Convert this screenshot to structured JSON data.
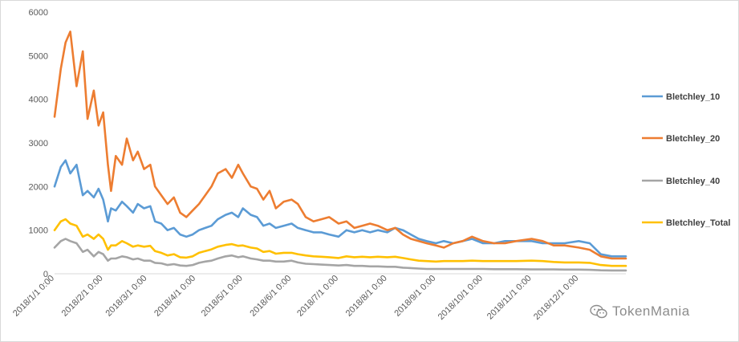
{
  "chart_data": {
    "type": "line",
    "title": "",
    "xlabel": "",
    "ylabel": "",
    "ylim": [
      0,
      6000
    ],
    "y_ticks": [
      0,
      1000,
      2000,
      3000,
      4000,
      5000,
      6000
    ],
    "grid": false,
    "legend_position": "right",
    "x_tick_labels": [
      "2018/1/1 0:00",
      "2018/2/1 0:00",
      "2018/3/1 0:00",
      "2018/4/1 0:00",
      "2018/5/1 0:00",
      "2018/6/1 0:00",
      "2018/7/1 0:00",
      "2018/8/1 0:00",
      "2018/9/1 0:00",
      "2018/10/1 0:00",
      "2018/11/1 0:00",
      "2018/12/1 0:00"
    ],
    "x": [
      "2018-01-01",
      "2018-01-05",
      "2018-01-08",
      "2018-01-11",
      "2018-01-15",
      "2018-01-19",
      "2018-01-22",
      "2018-01-26",
      "2018-01-29",
      "2018-02-01",
      "2018-02-04",
      "2018-02-06",
      "2018-02-09",
      "2018-02-13",
      "2018-02-16",
      "2018-02-20",
      "2018-02-23",
      "2018-02-27",
      "2018-03-03",
      "2018-03-06",
      "2018-03-10",
      "2018-03-14",
      "2018-03-18",
      "2018-03-22",
      "2018-03-26",
      "2018-03-30",
      "2018-04-03",
      "2018-04-07",
      "2018-04-11",
      "2018-04-15",
      "2018-04-20",
      "2018-04-24",
      "2018-04-28",
      "2018-05-01",
      "2018-05-06",
      "2018-05-10",
      "2018-05-14",
      "2018-05-18",
      "2018-05-22",
      "2018-05-27",
      "2018-06-01",
      "2018-06-05",
      "2018-06-10",
      "2018-06-15",
      "2018-06-20",
      "2018-06-25",
      "2018-07-01",
      "2018-07-06",
      "2018-07-11",
      "2018-07-16",
      "2018-07-21",
      "2018-07-26",
      "2018-08-01",
      "2018-08-06",
      "2018-08-11",
      "2018-08-16",
      "2018-08-21",
      "2018-08-26",
      "2018-09-01",
      "2018-09-06",
      "2018-09-12",
      "2018-09-18",
      "2018-09-24",
      "2018-10-01",
      "2018-10-08",
      "2018-10-15",
      "2018-10-22",
      "2018-11-01",
      "2018-11-08",
      "2018-11-15",
      "2018-11-22",
      "2018-12-01",
      "2018-12-08",
      "2018-12-15",
      "2018-12-22",
      "2018-12-31"
    ],
    "series": [
      {
        "name": "Bletchley_10",
        "color": "#5b9bd5",
        "values": [
          2000,
          2450,
          2600,
          2300,
          2500,
          1800,
          1900,
          1750,
          1950,
          1700,
          1200,
          1500,
          1450,
          1650,
          1550,
          1400,
          1600,
          1500,
          1550,
          1200,
          1150,
          1000,
          1050,
          900,
          850,
          900,
          1000,
          1050,
          1100,
          1250,
          1350,
          1400,
          1300,
          1500,
          1350,
          1300,
          1100,
          1150,
          1050,
          1100,
          1150,
          1050,
          1000,
          950,
          950,
          900,
          850,
          1000,
          950,
          1000,
          950,
          1000,
          950,
          1050,
          1000,
          900,
          800,
          750,
          700,
          750,
          700,
          750,
          800,
          700,
          700,
          750,
          750,
          750,
          700,
          700,
          700,
          750,
          700,
          450,
          400,
          400
        ]
      },
      {
        "name": "Bletchley_20",
        "color": "#ed7d31",
        "values": [
          3600,
          4700,
          5300,
          5550,
          4300,
          5100,
          3550,
          4200,
          3400,
          3700,
          2500,
          1900,
          2700,
          2500,
          3100,
          2600,
          2800,
          2400,
          2500,
          2000,
          1800,
          1600,
          1750,
          1400,
          1300,
          1450,
          1600,
          1800,
          2000,
          2300,
          2400,
          2200,
          2500,
          2300,
          2000,
          1950,
          1700,
          1900,
          1500,
          1650,
          1700,
          1600,
          1300,
          1200,
          1250,
          1300,
          1150,
          1200,
          1050,
          1100,
          1150,
          1100,
          1000,
          1050,
          900,
          800,
          750,
          700,
          650,
          600,
          700,
          750,
          850,
          750,
          700,
          700,
          750,
          800,
          750,
          650,
          650,
          600,
          550,
          400,
          350,
          350
        ]
      },
      {
        "name": "Bletchley_40",
        "color": "#a5a5a5",
        "values": [
          600,
          750,
          800,
          750,
          700,
          500,
          550,
          400,
          500,
          450,
          300,
          350,
          350,
          400,
          380,
          330,
          350,
          300,
          300,
          250,
          240,
          200,
          220,
          190,
          180,
          200,
          250,
          280,
          300,
          350,
          400,
          420,
          380,
          400,
          350,
          330,
          300,
          300,
          280,
          280,
          300,
          260,
          230,
          220,
          210,
          200,
          190,
          200,
          180,
          180,
          170,
          170,
          160,
          160,
          140,
          130,
          120,
          110,
          110,
          110,
          110,
          110,
          110,
          110,
          105,
          105,
          105,
          100,
          100,
          100,
          95,
          95,
          90,
          80,
          75,
          75
        ]
      },
      {
        "name": "Bletchley_Total",
        "color": "#ffc000",
        "values": [
          1000,
          1200,
          1250,
          1150,
          1100,
          850,
          900,
          800,
          900,
          800,
          550,
          650,
          650,
          750,
          700,
          620,
          650,
          620,
          640,
          520,
          480,
          420,
          450,
          380,
          370,
          400,
          480,
          520,
          560,
          620,
          660,
          680,
          640,
          650,
          600,
          580,
          500,
          520,
          460,
          480,
          480,
          450,
          420,
          400,
          390,
          380,
          360,
          400,
          380,
          390,
          380,
          390,
          380,
          390,
          360,
          330,
          300,
          290,
          280,
          290,
          290,
          290,
          300,
          290,
          290,
          290,
          290,
          300,
          290,
          270,
          260,
          260,
          250,
          200,
          180,
          180
        ]
      }
    ]
  },
  "watermark": {
    "text": "TokenMania",
    "icon": "wechat-icon"
  }
}
